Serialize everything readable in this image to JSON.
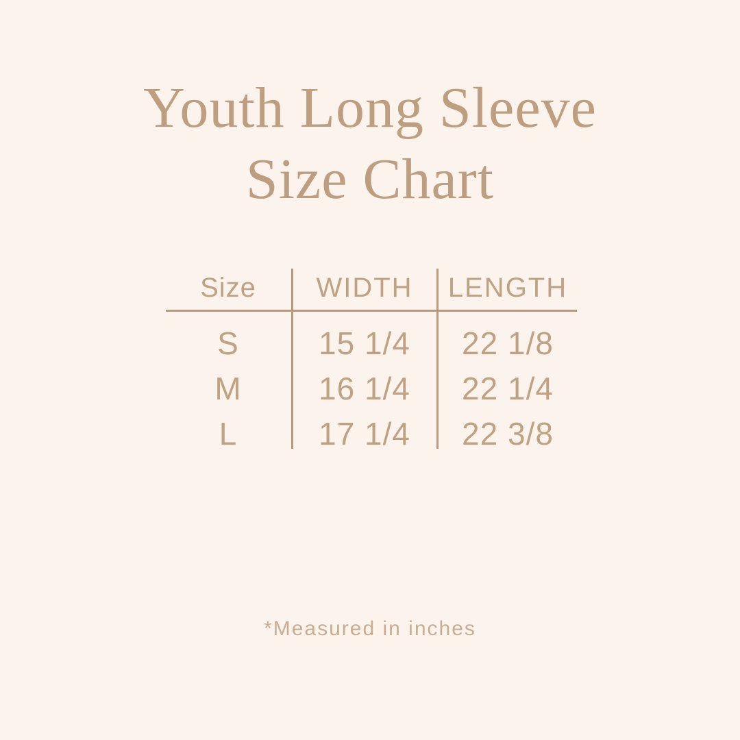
{
  "page": {
    "background_color": "#fcf4ec",
    "accent_text_color": "#bd9e81",
    "table_line_color": "#b79a7e"
  },
  "title": {
    "line1": "Youth Long Sleeve",
    "line2": "Size Chart"
  },
  "table": {
    "columns": [
      "Size",
      "WIDTH",
      "LENGTH"
    ],
    "rows": [
      {
        "size": "S",
        "width": "15 1/4",
        "length": "22 1/8"
      },
      {
        "size": "M",
        "width": "16 1/4",
        "length": "22 1/4"
      },
      {
        "size": "L",
        "width": "17 1/4",
        "length": "22 3/8"
      }
    ]
  },
  "footnote": {
    "text": "*Measured in inches"
  },
  "chart_data": {
    "type": "table",
    "title": "Youth Long Sleeve Size Chart",
    "columns": [
      "Size",
      "WIDTH",
      "LENGTH"
    ],
    "rows": [
      [
        "S",
        "15 1/4",
        "22 1/8"
      ],
      [
        "M",
        "16 1/4",
        "22 1/4"
      ],
      [
        "L",
        "17 1/4",
        "22 3/8"
      ]
    ],
    "units": "inches",
    "note": "*Measured in inches"
  }
}
